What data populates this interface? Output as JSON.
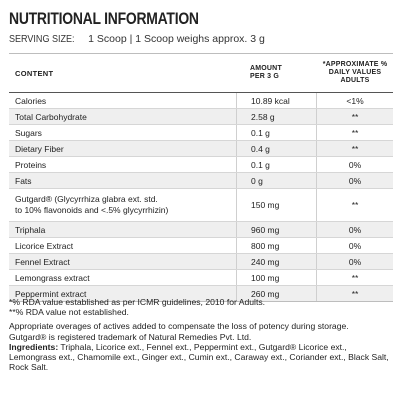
{
  "title": "NUTRITIONAL INFORMATION",
  "serving": {
    "label": "SERVING SIZE:",
    "value": "1 Scoop | 1 Scoop weighs approx. 3 g"
  },
  "table": {
    "headers": {
      "content": "CONTENT",
      "amount_line1": "AMOUNT",
      "amount_line2": "PER 3 G",
      "rda_line1": "*APPROXIMATE %",
      "rda_line2": "DAILY VALUES",
      "rda_line3": "ADULTS"
    },
    "rows": [
      {
        "name": "Calories",
        "amount": "10.89 kcal",
        "rda": "<1%"
      },
      {
        "name": "Total Carbohydrate",
        "amount": "2.58 g",
        "rda": "**"
      },
      {
        "name": "Sugars",
        "amount": "0.1 g",
        "rda": "**"
      },
      {
        "name": "Dietary Fiber",
        "amount": "0.4 g",
        "rda": "**"
      },
      {
        "name": "Proteins",
        "amount": "0.1 g",
        "rda": "0%"
      },
      {
        "name": "Fats",
        "amount": "0 g",
        "rda": "0%"
      },
      {
        "name_line1": "Gutgard® (Glycyrrhiza glabra ext. std.",
        "name_line2": "to 10% flavonoids and <.5% glycyrrhizin)",
        "amount": "150 mg",
        "rda": "**"
      },
      {
        "name": "Triphala",
        "amount": "960 mg",
        "rda": "0%"
      },
      {
        "name": "Licorice Extract",
        "amount": "800 mg",
        "rda": "0%"
      },
      {
        "name": "Fennel Extract",
        "amount": "240 mg",
        "rda": "0%"
      },
      {
        "name": "Lemongrass extract",
        "amount": "100 mg",
        "rda": "**"
      },
      {
        "name": "Peppermint extract",
        "amount": "260 mg",
        "rda": "**"
      }
    ]
  },
  "footnotes": {
    "rda_note": "*% RDA value established as per ICMR guidelines, 2010 for Adults.",
    "not_established": "**% RDA value not established.",
    "overages": "Appropriate overages of actives added to compensate the loss of potency during storage.",
    "trademark": "Gutgard® is registered trademark of Natural Remedies Pvt. Ltd.",
    "ingredients_label": "Ingredients:",
    "ingredients_text": " Triphala, Licorice ext., Fennel ext., Peppermint ext., Gutgard® Licorice ext., Lemongrass ext., Chamomile ext., Ginger ext., Cumin ext., Caraway ext., Coriander ext., Black Salt, Rock Salt."
  }
}
